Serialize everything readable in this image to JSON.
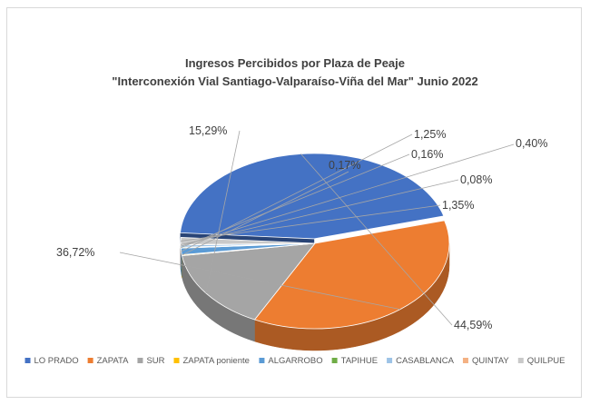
{
  "chart_data": {
    "type": "pie",
    "title": "Ingresos Percibidos por Plaza de Peaje",
    "subtitle": "\"Interconexión Vial Santiago-Valparaíso-Viña del Mar\" Junio 2022",
    "legend_position": "bottom",
    "slices": [
      {
        "name": "LO PRADO",
        "value": 44.59,
        "label": "44,59%",
        "color": "#4472c4"
      },
      {
        "name": "ZAPATA",
        "value": 36.72,
        "label": "36,72%",
        "color": "#ed7d31"
      },
      {
        "name": "SUR",
        "value": 15.29,
        "label": "15,29%",
        "color": "#a5a5a5"
      },
      {
        "name": "ZAPATA poniente",
        "value": 0.17,
        "label": "0,17%",
        "color": "#ffc000"
      },
      {
        "name": "ALGARROBO",
        "value": 1.25,
        "label": "1,25%",
        "color": "#5b9bd5"
      },
      {
        "name": "TAPIHUE",
        "value": 0.16,
        "label": "0,16%",
        "color": "#70ad47"
      },
      {
        "name": "CASABLANCA",
        "value": 0.4,
        "label": "0,40%",
        "color": "#9dc3e6"
      },
      {
        "name": "QUINTAY",
        "value": 0.08,
        "label": "0,08%",
        "color": "#f4b183"
      },
      {
        "name": "QUILPUE",
        "value": 1.35,
        "label": "1,35%",
        "color": "#c9c9c9"
      }
    ]
  }
}
